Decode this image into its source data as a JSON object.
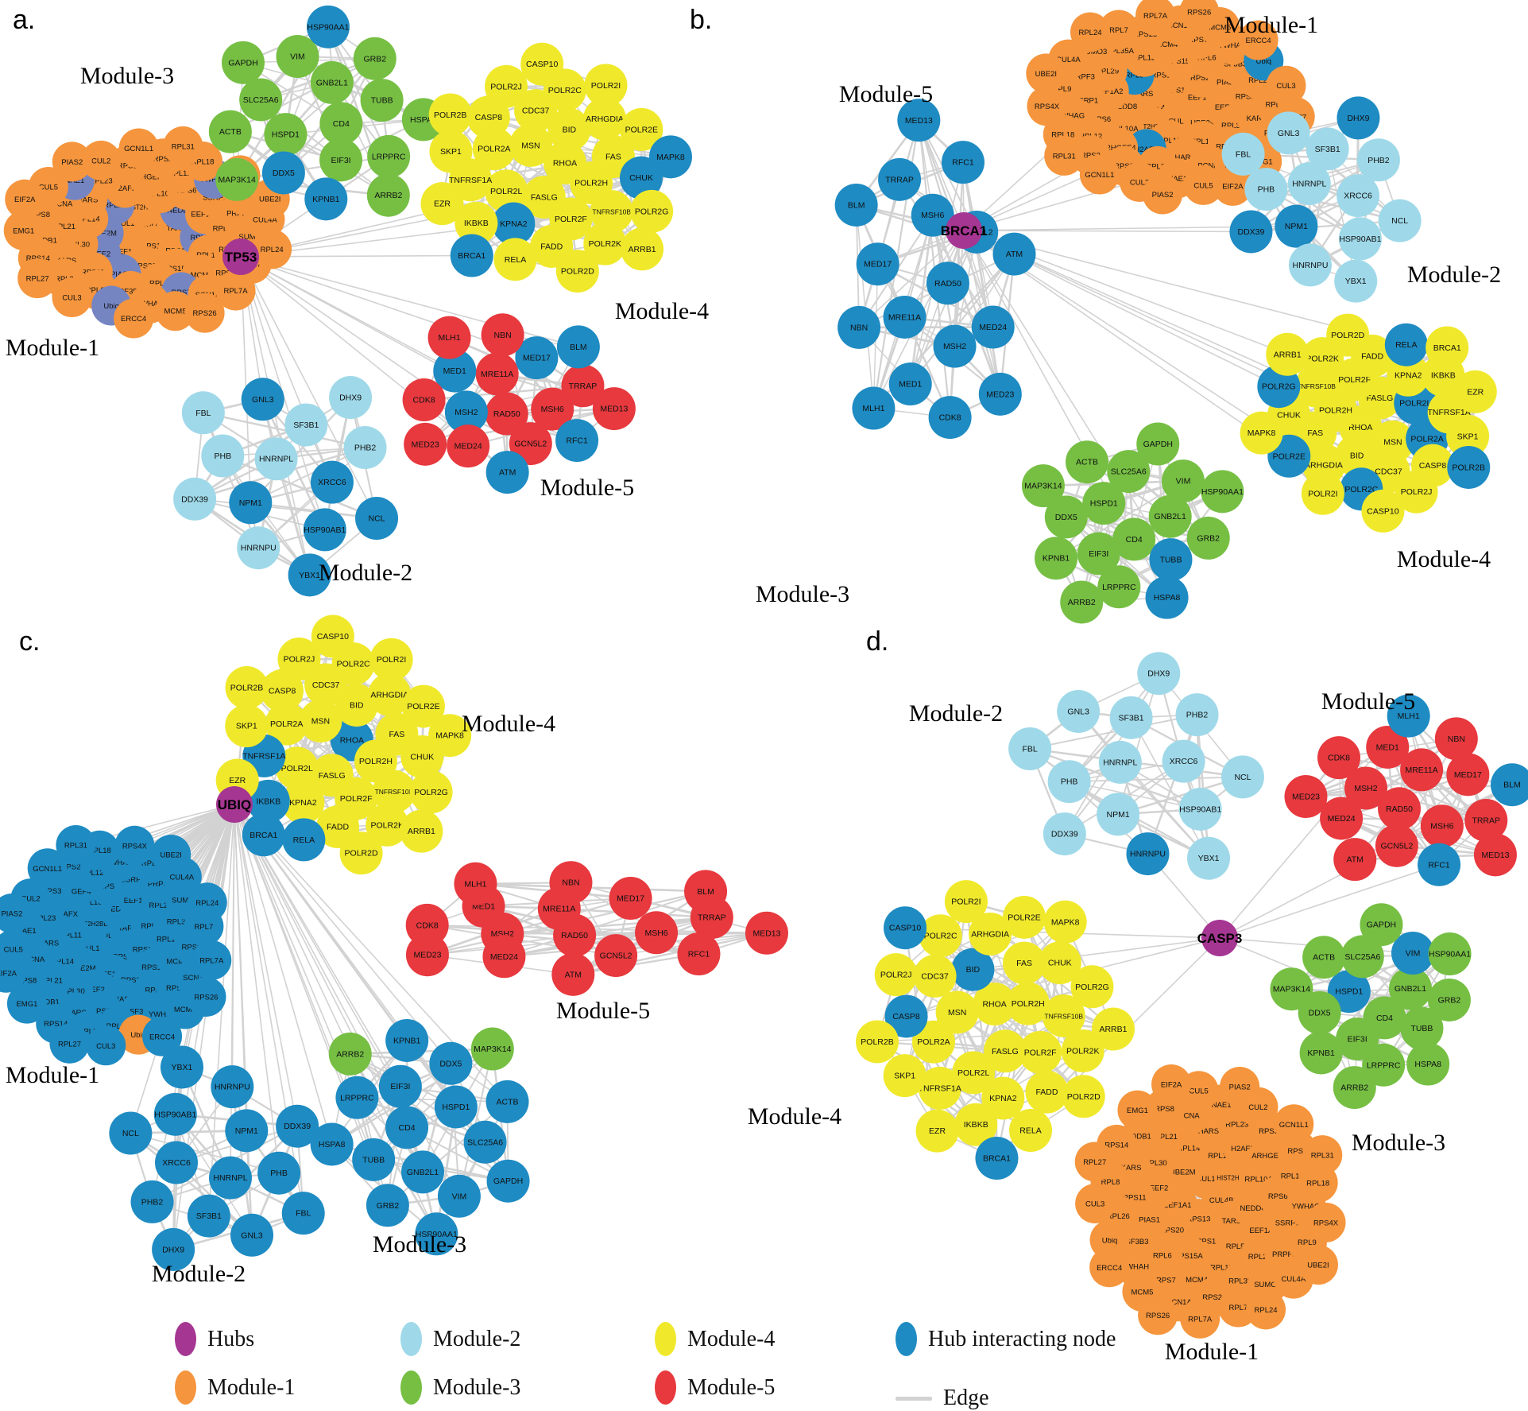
{
  "colors": {
    "hubs": "#A53692",
    "module1": "#F5953D",
    "module2": "#9FD9E9",
    "module3": "#76BF43",
    "module4": "#F0E92B",
    "module5": "#E7393E",
    "interacting": "#1E8BC3",
    "slate": "#7585C2",
    "edge": "#D2D2D2",
    "node_text": "#111111"
  },
  "legend": {
    "items": [
      {
        "label": "Hubs",
        "color": "hubs",
        "marker": "ellipse"
      },
      {
        "label": "Module-1",
        "color": "module1",
        "marker": "ellipse"
      },
      {
        "label": "Module-2",
        "color": "module2",
        "marker": "ellipse"
      },
      {
        "label": "Module-3",
        "color": "module3",
        "marker": "ellipse"
      },
      {
        "label": "Module-4",
        "color": "module4",
        "marker": "ellipse"
      },
      {
        "label": "Module-5",
        "color": "module5",
        "marker": "ellipse"
      },
      {
        "label": "Hub interacting node",
        "color": "interacting",
        "marker": "ellipse"
      },
      {
        "label": "Edge",
        "color": "edge",
        "marker": "line"
      }
    ]
  },
  "gene_sets": {
    "module1": [
      "CUL4B",
      "RPS13",
      "CUL1",
      "TARS",
      "EEF1A1",
      "HIST2H2BE",
      "RPS16",
      "UBE2M",
      "NEDD8",
      "RPS20",
      "RPL11",
      "RPL5",
      "EEF2",
      "RPL10A",
      "RPS15A",
      "RPL14",
      "EEF1A2",
      "PIAS1",
      "H2AFX",
      "RPL13",
      "RPL30",
      "RPS6",
      "RPL6",
      "HARS",
      "RPL29",
      "RPS11",
      "ARHGEF4",
      "MCM4",
      "RPL21",
      "SSRP1",
      "SF3B3",
      "RPL23",
      "RPL35A",
      "KARS",
      "RPL12",
      "RPS7",
      "PCNA",
      "PRPF3",
      "RPL26",
      "RPS3",
      "RPS23",
      "DDB1",
      "YWHAG",
      "YWHAH",
      "NAE1",
      "SUMO3",
      "RPL8",
      "RPS2",
      "SCN1A",
      "RPS8",
      "RPL9",
      "Ubiq",
      "CUL2",
      "RPL7",
      "RPS14",
      "RPL18",
      "MCM5",
      "CUL5",
      "CUL4A",
      "CUL3",
      "GCN1L1",
      "RPL7A",
      "EMG1",
      "RPS4X",
      "ERCC4",
      "PIAS2",
      "RPL24",
      "RPL27",
      "RPL31",
      "RPS26",
      "EIF2A",
      "UBE2I"
    ],
    "module2": [
      "HNRNPL",
      "XRCC6",
      "NPM1",
      "SF3B1",
      "HSP90AB1",
      "PHB",
      "PHB2",
      "HNRNPU",
      "GNL3",
      "NCL",
      "DDX39",
      "DHX9",
      "YBX1",
      "FBL"
    ],
    "module3": [
      "CD4",
      "HSPD1",
      "GNB2L1",
      "EIF3I",
      "SLC25A6",
      "TUBB",
      "DDX5",
      "VIM",
      "LRPPRC",
      "ACTB",
      "GRB2",
      "KPNB1",
      "GAPDH",
      "HSPA8",
      "MAP3K14",
      "HSP90AA1",
      "ARRB2"
    ],
    "module4": [
      "RHOA",
      "FASLG",
      "MSN",
      "POLR2H",
      "POLR2L",
      "BID",
      "POLR2F",
      "POLR2A",
      "FAS",
      "KPNA2",
      "CDC37",
      "TNFRSF10B",
      "TNFRSF1A",
      "ARHGDIA",
      "FADD",
      "CASP8",
      "CHUK",
      "IKBKB",
      "POLR2C",
      "POLR2K",
      "SKP1",
      "POLR2E",
      "RELA",
      "POLR2J",
      "POLR2G",
      "EZR",
      "POLR2I",
      "POLR2D",
      "POLR2B",
      "MAPK8",
      "BRCA1",
      "CASP10",
      "ARRB1"
    ],
    "module5": [
      "RAD50",
      "MRE11A",
      "MSH6",
      "MSH2",
      "MED17",
      "GCN5L2",
      "MED1",
      "TRRAP",
      "MED24",
      "NBN",
      "RFC1",
      "CDK8",
      "BLM",
      "ATM",
      "MLH1",
      "MED13",
      "MED23"
    ]
  },
  "figure": {
    "panels": [
      {
        "id": "a",
        "letter": "a.",
        "hub": {
          "name": "TP53"
        },
        "modules": [
          {
            "id": "m1",
            "set": "module1",
            "label": "Module-1",
            "default": "module1",
            "interacting_color": "slate",
            "interacting": [
              "RPL11",
              "RPL5",
              "EEF2",
              "UBE2M",
              "NEDD8",
              "PIAS1",
              "RPS7",
              "NAE1",
              "Ubiq",
              "YWHAG"
            ]
          },
          {
            "id": "m2",
            "set": "module2",
            "label": "Module-2",
            "default": "module2",
            "interacting": [
              "XRCC6",
              "NPM1",
              "HSP90AB1",
              "GNL3",
              "NCL",
              "YBX1"
            ]
          },
          {
            "id": "m3",
            "set": "module3",
            "label": "Module-3",
            "default": "module3",
            "interacting": [
              "DDX5",
              "KPNB1",
              "HSP90AA1"
            ]
          },
          {
            "id": "m4",
            "set": "module4",
            "label": "Module-4",
            "default": "module4",
            "interacting": [
              "KPNA2",
              "CHUK",
              "MAPK8",
              "BRCA1"
            ]
          },
          {
            "id": "m5",
            "set": "module5",
            "label": "Module-5",
            "default": "module5",
            "interacting": [
              "MSH2",
              "MED17",
              "MED1",
              "RFC1",
              "BLM",
              "ATM"
            ]
          }
        ]
      },
      {
        "id": "b",
        "letter": "b.",
        "hub": {
          "name": "BRCA1"
        },
        "modules": [
          {
            "id": "m1",
            "set": "module1",
            "label": "Module-1",
            "default": "module1",
            "interacting": [
              "H2AFX",
              "Ubiq",
              "RPL5"
            ]
          },
          {
            "id": "m2",
            "set": "module2",
            "label": "Module-2",
            "default": "module2",
            "interacting": [
              "NPM1",
              "DHX9",
              "DDX39"
            ]
          },
          {
            "id": "m3",
            "set": "module3",
            "label": "Module-3",
            "default": "module3",
            "interacting": [
              "TUBB",
              "HSPA8"
            ]
          },
          {
            "id": "m4",
            "set": "module4",
            "label": "Module-4",
            "default": "module4",
            "interacting": [
              "POLR2A",
              "POLR2B",
              "POLR2C",
              "POLR2L",
              "POLR2E",
              "POLR2G",
              "RELA"
            ]
          },
          {
            "id": "m5",
            "set": "module5",
            "label": "Module-5",
            "default": "interacting",
            "interacting": []
          }
        ]
      },
      {
        "id": "c",
        "letter": "c.",
        "hub": {
          "name": "UBIQ"
        },
        "modules": [
          {
            "id": "m1",
            "set": "module1",
            "label": "Module-1",
            "default": "interacting",
            "module_colored": [
              "Ubiq"
            ]
          },
          {
            "id": "m2",
            "set": "module2",
            "label": "Module-2",
            "default": "interacting"
          },
          {
            "id": "m3",
            "set": "module3",
            "label": "Module-3",
            "default": "interacting",
            "module_colored": [
              "ARRB2",
              "MAP3K14"
            ]
          },
          {
            "id": "m4",
            "set": "module4",
            "label": "Module-4",
            "default": "module4",
            "interacting": [
              "BRCA1",
              "IKBKB",
              "TNFRSF1A",
              "RELA",
              "RHOA"
            ]
          },
          {
            "id": "m5",
            "set": "module5",
            "label": "Module-5",
            "default": "module5",
            "interacting": []
          }
        ]
      },
      {
        "id": "d",
        "letter": "d.",
        "hub": {
          "name": "CASP3"
        },
        "modules": [
          {
            "id": "m1",
            "set": "module1",
            "label": "Module-1",
            "default": "module1",
            "interacting": []
          },
          {
            "id": "m2",
            "set": "module2",
            "label": "Module-2",
            "default": "module2",
            "interacting": [
              "HNRNPU"
            ]
          },
          {
            "id": "m3",
            "set": "module3",
            "label": "Module-3",
            "default": "module3",
            "interacting": [
              "VIM",
              "HSPD1"
            ]
          },
          {
            "id": "m4",
            "set": "module4",
            "label": "Module-4",
            "default": "module4",
            "interacting": [
              "BRCA1",
              "BID",
              "CASP10",
              "CASP8"
            ]
          },
          {
            "id": "m5",
            "set": "module5",
            "label": "Module-5",
            "default": "module5",
            "interacting": [
              "RFC1",
              "MLH1",
              "BLM"
            ]
          }
        ]
      }
    ]
  }
}
